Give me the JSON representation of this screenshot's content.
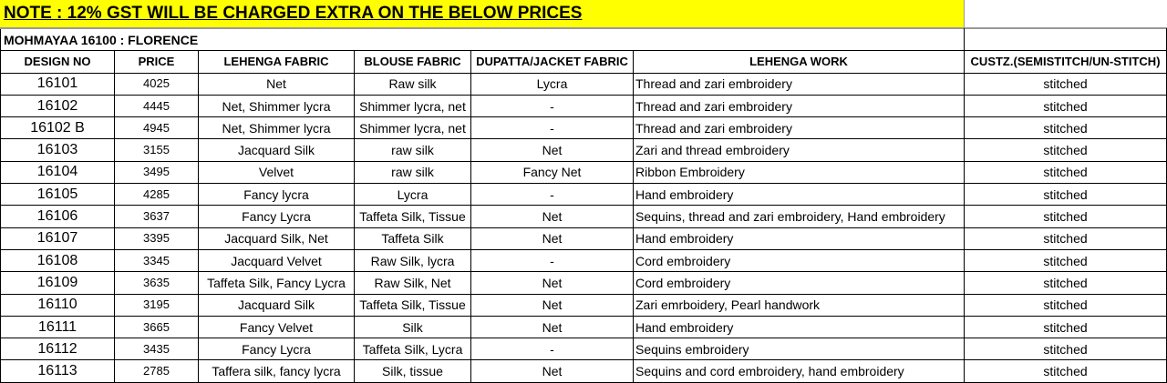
{
  "note": "NOTE : 12% GST WILL BE CHARGED EXTRA ON THE BELOW PRICES",
  "collection": "MOHMAYAA 16100  : FLORENCE",
  "headers": [
    "DESIGN NO",
    "PRICE",
    "LEHENGA FABRIC",
    "BLOUSE FABRIC",
    "DUPATTA/JACKET FABRIC",
    "LEHENGA WORK",
    "CUSTZ.(SEMISTITCH/UN-STITCH)"
  ],
  "rows": [
    {
      "design": "16101",
      "price": "4025",
      "lehenga": "Net",
      "blouse": "Raw silk",
      "dupatta": "Lycra",
      "work": "Thread and zari embroidery",
      "custz": "stitched"
    },
    {
      "design": "16102",
      "price": "4445",
      "lehenga": "Net, Shimmer lycra",
      "blouse": "Shimmer lycra, net",
      "dupatta": "-",
      "work": "Thread and zari embroidery",
      "custz": "stitched"
    },
    {
      "design": "16102 B",
      "price": "4945",
      "lehenga": "Net, Shimmer lycra",
      "blouse": "Shimmer lycra, net",
      "dupatta": "-",
      "work": "Thread and zari embroidery",
      "custz": "stitched"
    },
    {
      "design": "16103",
      "price": "3155",
      "lehenga": "Jacquard Silk",
      "blouse": "raw silk",
      "dupatta": "Net",
      "work": "Zari and thread embroidery",
      "custz": "stitched"
    },
    {
      "design": "16104",
      "price": "3495",
      "lehenga": "Velvet",
      "blouse": "raw silk",
      "dupatta": "Fancy Net",
      "work": "Ribbon Embroidery",
      "custz": "stitched"
    },
    {
      "design": "16105",
      "price": "4285",
      "lehenga": "Fancy lycra",
      "blouse": "Lycra",
      "dupatta": "-",
      "work": "Hand embroidery",
      "custz": "stitched"
    },
    {
      "design": "16106",
      "price": "3637",
      "lehenga": "Fancy Lycra",
      "blouse": "Taffeta Silk, Tissue",
      "dupatta": "Net",
      "work": "Sequins, thread and zari embroidery, Hand embroidery",
      "custz": "stitched"
    },
    {
      "design": "16107",
      "price": "3395",
      "lehenga": "Jacquard Silk, Net",
      "blouse": "Taffeta Silk",
      "dupatta": "Net",
      "work": "Hand embroidery",
      "custz": "stitched"
    },
    {
      "design": "16108",
      "price": "3345",
      "lehenga": "Jacquard Velvet",
      "blouse": "Raw Silk, lycra",
      "dupatta": "-",
      "work": "Cord embroidery",
      "custz": "stitched"
    },
    {
      "design": "16109",
      "price": "3635",
      "lehenga": "Taffeta Silk, Fancy Lycra",
      "blouse": "Raw Silk, Net",
      "dupatta": "Net",
      "work": "Cord embroidery",
      "custz": "stitched"
    },
    {
      "design": "16110",
      "price": "3195",
      "lehenga": "Jacquard Silk",
      "blouse": "Taffeta Silk, Tissue",
      "dupatta": "Net",
      "work": "Zari emrboidery, Pearl handwork",
      "custz": "stitched"
    },
    {
      "design": "16111",
      "price": "3665",
      "lehenga": "Fancy Velvet",
      "blouse": "Silk",
      "dupatta": "Net",
      "work": "Hand embroidery",
      "custz": "stitched"
    },
    {
      "design": "16112",
      "price": "3435",
      "lehenga": "Fancy Lycra",
      "blouse": "Taffeta Silk, Lycra",
      "dupatta": "-",
      "work": "Sequins embroidery",
      "custz": "stitched"
    },
    {
      "design": "16113",
      "price": "2785",
      "lehenga": "Taffera silk, fancy lycra",
      "blouse": "Silk, tissue",
      "dupatta": "Net",
      "work": "Sequins and cord embroidery, hand embroidery",
      "custz": "stitched"
    }
  ]
}
